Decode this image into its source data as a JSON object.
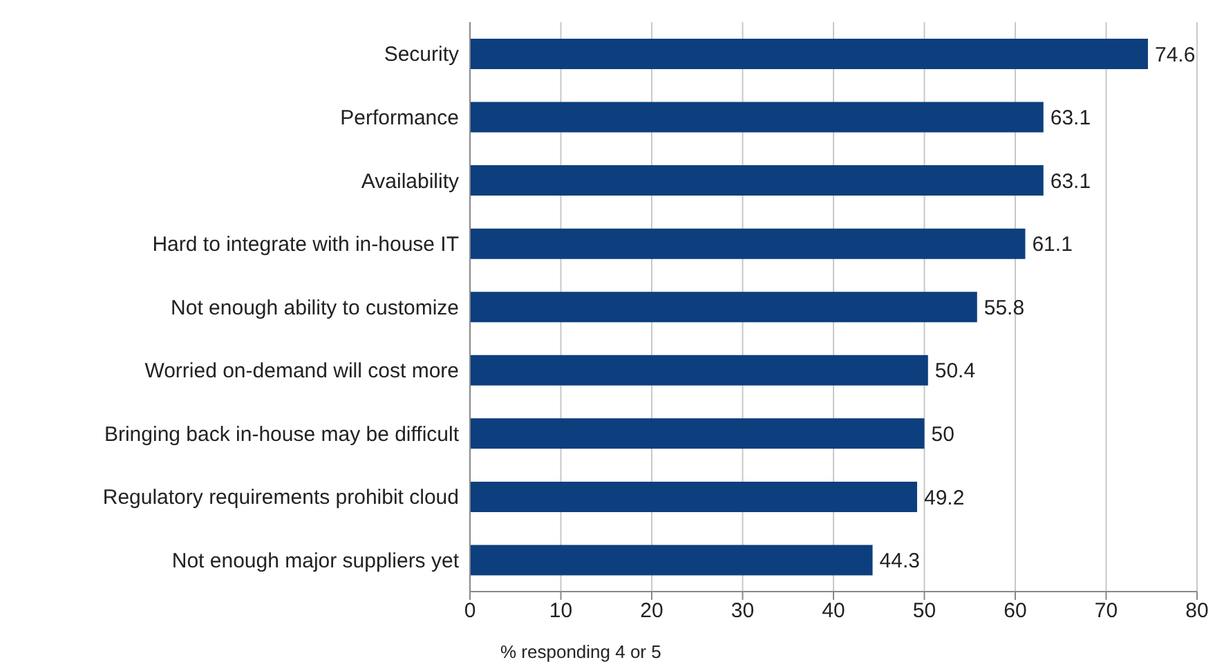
{
  "chart_data": {
    "type": "bar",
    "orientation": "horizontal",
    "xlabel": "% responding 4 or 5",
    "categories": [
      "Security",
      "Performance",
      "Availability",
      "Hard to integrate with in-house IT",
      "Not enough ability to customize",
      "Worried on-demand will cost more",
      "Bringing back in-house may be difficult",
      "Regulatory requirements prohibit cloud",
      "Not enough major suppliers yet"
    ],
    "values": [
      74.6,
      63.1,
      63.1,
      61.1,
      55.8,
      50.4,
      50,
      49.2,
      44.3
    ],
    "color": "#0d3f7e",
    "xlim": [
      0,
      80
    ],
    "xticks": [
      0,
      10,
      20,
      30,
      40,
      50,
      60,
      70,
      80
    ],
    "grid": "x",
    "data_labels": true,
    "legend": false
  }
}
